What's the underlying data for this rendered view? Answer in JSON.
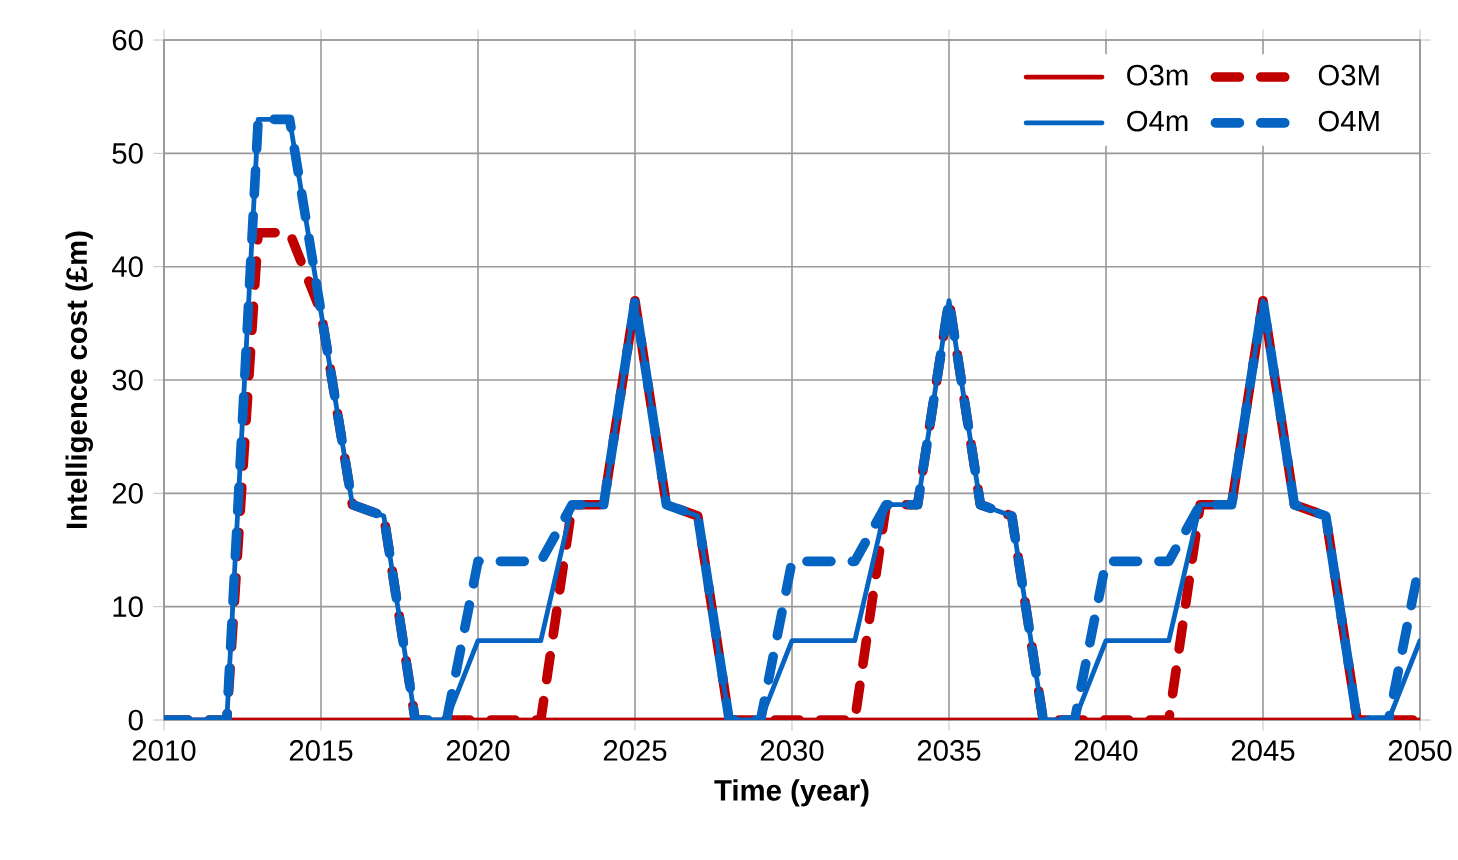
{
  "chart_data": {
    "type": "line",
    "xlabel": "Time (year)",
    "ylabel": "Intelligence cost (£m)",
    "x": [
      2010,
      2011,
      2012,
      2013,
      2014,
      2015,
      2016,
      2017,
      2018,
      2019,
      2020,
      2021,
      2022,
      2023,
      2024,
      2025,
      2026,
      2027,
      2028,
      2029,
      2030,
      2031,
      2032,
      2033,
      2034,
      2035,
      2036,
      2037,
      2038,
      2039,
      2040,
      2041,
      2042,
      2043,
      2044,
      2045,
      2046,
      2047,
      2048,
      2049,
      2050
    ],
    "series": [
      {
        "name": "O3m",
        "color": "#c00000",
        "line_style": "solid",
        "values": [
          0,
          0,
          0,
          0,
          0,
          0,
          0,
          0,
          0,
          0,
          0,
          0,
          0,
          0,
          0,
          0,
          0,
          0,
          0,
          0,
          0,
          0,
          0,
          0,
          0,
          0,
          0,
          0,
          0,
          0,
          0,
          0,
          0,
          0,
          0,
          0,
          0,
          0,
          0,
          0,
          0
        ]
      },
      {
        "name": "O3M",
        "color": "#c00000",
        "line_style": "dashed",
        "values": [
          0,
          0,
          0,
          43,
          43,
          36,
          19,
          18,
          0,
          0,
          0,
          0,
          0,
          19,
          19,
          37,
          19,
          18,
          0,
          0,
          0,
          0,
          0,
          19,
          19,
          37,
          19,
          18,
          0,
          0,
          0,
          0,
          0,
          19,
          19,
          37,
          19,
          18,
          0,
          0,
          0
        ]
      },
      {
        "name": "O4m",
        "color": "#0563c1",
        "line_style": "solid",
        "values": [
          0,
          0,
          0,
          53,
          53,
          36,
          19,
          18,
          0,
          0,
          7,
          7,
          7,
          19,
          19,
          37,
          19,
          18,
          0,
          0,
          7,
          7,
          7,
          19,
          19,
          37,
          19,
          18,
          0,
          0,
          7,
          7,
          7,
          19,
          19,
          37,
          19,
          18,
          0,
          0,
          7
        ]
      },
      {
        "name": "O4M",
        "color": "#0563c1",
        "line_style": "dashed",
        "values": [
          0,
          0,
          0,
          53,
          53,
          36,
          19,
          18,
          0,
          0,
          14,
          14,
          14,
          19,
          19,
          37,
          19,
          18,
          0,
          0,
          14,
          14,
          14,
          19,
          19,
          37,
          19,
          18,
          0,
          0,
          14,
          14,
          14,
          19,
          19,
          37,
          19,
          18,
          0,
          0,
          14
        ]
      }
    ],
    "xlim": [
      2010,
      2050
    ],
    "xticks": [
      2010,
      2015,
      2020,
      2025,
      2030,
      2035,
      2040,
      2045,
      2050
    ],
    "ylim": [
      0,
      60
    ],
    "yticks": [
      0,
      10,
      20,
      30,
      40,
      50,
      60
    ],
    "grid": true,
    "legend": "top right"
  }
}
